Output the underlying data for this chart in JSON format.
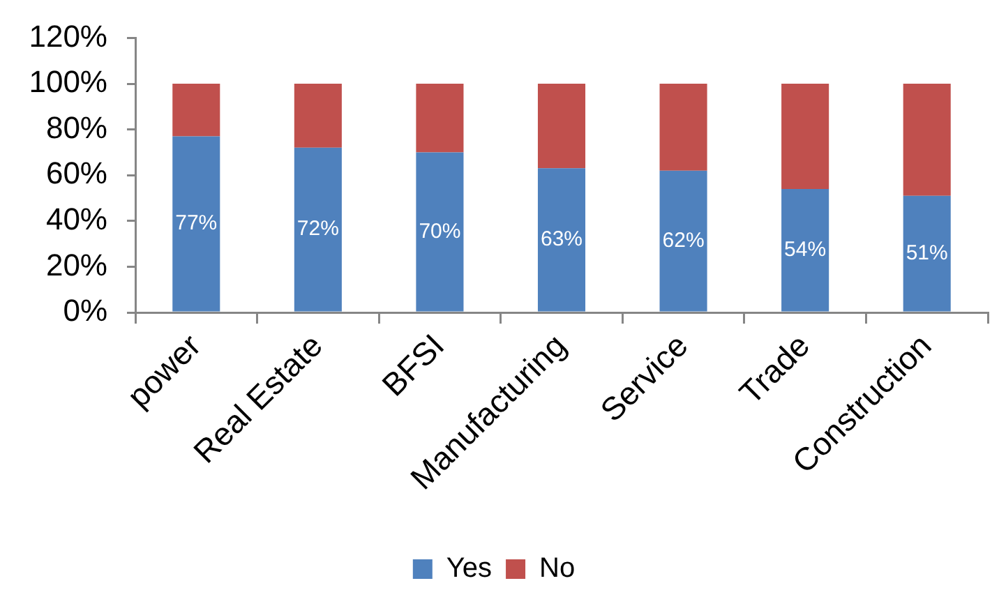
{
  "chart_data": {
    "type": "bar",
    "stacked": true,
    "categories": [
      "power",
      "Real Estate",
      "BFSI",
      "Manufacturing",
      "Service",
      "Trade",
      "Construction"
    ],
    "series": [
      {
        "name": "Yes",
        "color": "#4f81bd",
        "values": [
          77,
          72,
          70,
          63,
          62,
          54,
          51
        ],
        "value_labels": [
          "77%",
          "72%",
          "70%",
          "63%",
          "62%",
          "54%",
          "51%"
        ]
      },
      {
        "name": "No",
        "color": "#c0504d",
        "values": [
          23,
          28,
          30,
          37,
          38,
          46,
          49
        ]
      }
    ],
    "ylim": [
      0,
      120
    ],
    "yticks": [
      {
        "value": 0,
        "label": "0%"
      },
      {
        "value": 20,
        "label": "20%"
      },
      {
        "value": 40,
        "label": "40%"
      },
      {
        "value": 60,
        "label": "60%"
      },
      {
        "value": 80,
        "label": "80%"
      },
      {
        "value": 100,
        "label": "100%"
      },
      {
        "value": 120,
        "label": "120%"
      }
    ],
    "grid": false,
    "legend": "bottom"
  }
}
